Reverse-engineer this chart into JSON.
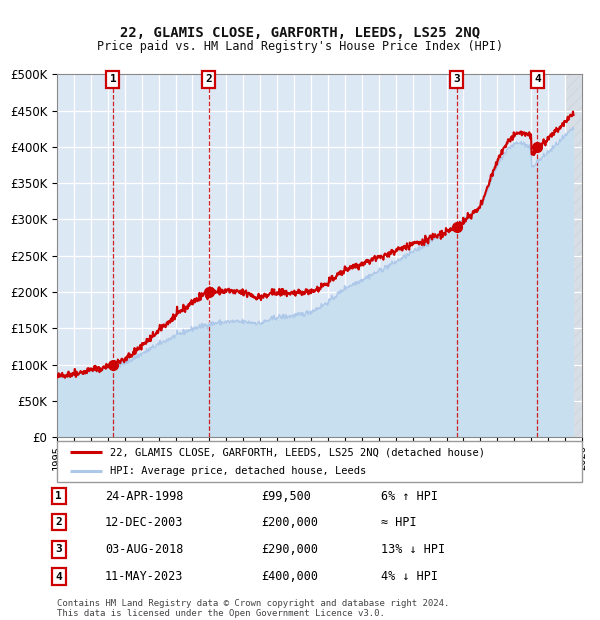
{
  "title": "22, GLAMIS CLOSE, GARFORTH, LEEDS, LS25 2NQ",
  "subtitle": "Price paid vs. HM Land Registry's House Price Index (HPI)",
  "hpi_color": "#adc8e8",
  "hpi_fill": "#c8dff0",
  "price_color": "#cc0000",
  "plot_bg": "#dde8f5",
  "legend_line1": "22, GLAMIS CLOSE, GARFORTH, LEEDS, LS25 2NQ (detached house)",
  "legend_line2": "HPI: Average price, detached house, Leeds",
  "sales": [
    {
      "num": 1,
      "date": "24-APR-1998",
      "year": 1998.3,
      "price": 99500,
      "hpi_note": "6% ↑ HPI"
    },
    {
      "num": 2,
      "date": "12-DEC-2003",
      "year": 2003.95,
      "price": 200000,
      "hpi_note": "≈ HPI"
    },
    {
      "num": 3,
      "date": "03-AUG-2018",
      "year": 2018.6,
      "price": 290000,
      "hpi_note": "13% ↓ HPI"
    },
    {
      "num": 4,
      "date": "11-MAY-2023",
      "year": 2023.37,
      "price": 400000,
      "hpi_note": "4% ↓ HPI"
    }
  ],
  "footer_line1": "Contains HM Land Registry data © Crown copyright and database right 2024.",
  "footer_line2": "This data is licensed under the Open Government Licence v3.0.",
  "ylim": [
    0,
    500000
  ],
  "yticks": [
    0,
    50000,
    100000,
    150000,
    200000,
    250000,
    300000,
    350000,
    400000,
    450000,
    500000
  ],
  "xmin": 1995,
  "xmax": 2026
}
